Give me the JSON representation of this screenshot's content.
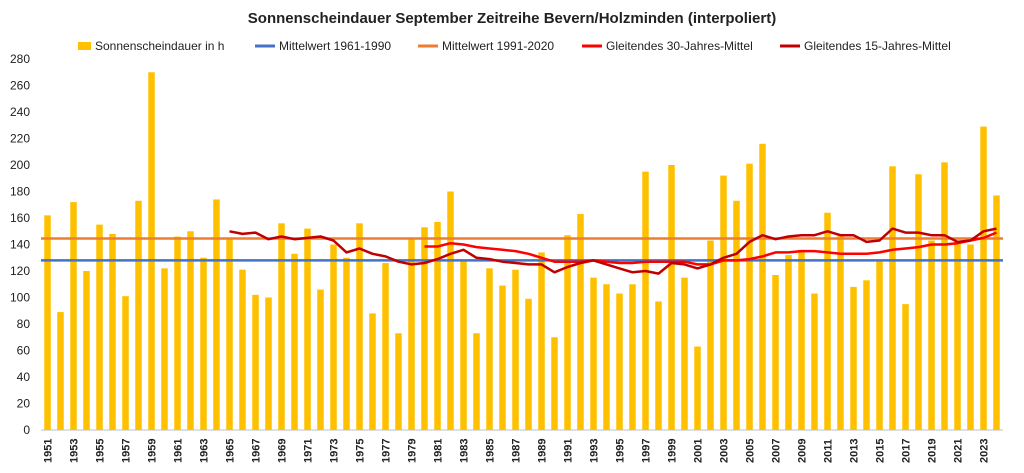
{
  "chart_data": {
    "type": "bar",
    "title": "Sonnenscheindauer September Zeitreihe Bevern/Holzminden (interpoliert)",
    "xlabel": "",
    "ylabel": "",
    "ylim": [
      0,
      280
    ],
    "yticks": [
      0,
      20,
      40,
      60,
      80,
      100,
      120,
      140,
      160,
      180,
      200,
      220,
      240,
      260,
      280
    ],
    "grid": false,
    "legend_position": "top",
    "colors": {
      "bars": "#FFC000",
      "mean_1961_1990": "#4472C4",
      "mean_1991_2020": "#ED7D31",
      "rolling_30": "#FF0000",
      "rolling_15": "#C00000"
    },
    "x": [
      1951,
      1952,
      1953,
      1954,
      1955,
      1956,
      1957,
      1958,
      1959,
      1960,
      1961,
      1962,
      1963,
      1964,
      1965,
      1966,
      1967,
      1968,
      1969,
      1970,
      1971,
      1972,
      1973,
      1974,
      1975,
      1976,
      1977,
      1978,
      1979,
      1980,
      1981,
      1982,
      1983,
      1984,
      1985,
      1986,
      1987,
      1988,
      1989,
      1990,
      1991,
      1992,
      1993,
      1994,
      1995,
      1996,
      1997,
      1998,
      1999,
      2000,
      2001,
      2002,
      2003,
      2004,
      2005,
      2006,
      2007,
      2008,
      2009,
      2010,
      2011,
      2012,
      2013,
      2014,
      2015,
      2016,
      2017,
      2018,
      2019,
      2020,
      2021,
      2022,
      2023,
      2024
    ],
    "x_tick_labels": [
      "1951",
      "1953",
      "1955",
      "1957",
      "1959",
      "1961",
      "1963",
      "1965",
      "1967",
      "1969",
      "1971",
      "1973",
      "1975",
      "1977",
      "1979",
      "1981",
      "1983",
      "1985",
      "1987",
      "1989",
      "1991",
      "1993",
      "1995",
      "1997",
      "1999",
      "2001",
      "2003",
      "2005",
      "2007",
      "2009",
      "2011",
      "2013",
      "2015",
      "2017",
      "2019",
      "2021",
      "2023"
    ],
    "series": [
      {
        "name": "Sonnenscheindauer in h",
        "kind": "bar",
        "values": [
          162,
          89,
          172,
          120,
          155,
          148,
          101,
          173,
          270,
          122,
          146,
          150,
          130,
          174,
          145,
          121,
          102,
          100,
          156,
          133,
          152,
          106,
          140,
          130,
          156,
          88,
          126,
          73,
          145,
          153,
          157,
          180,
          128,
          73,
          122,
          109,
          121,
          99,
          134,
          70,
          147,
          163,
          115,
          110,
          103,
          110,
          195,
          97,
          200,
          115,
          63,
          143,
          192,
          173,
          201,
          216,
          117,
          132,
          136,
          103,
          164,
          148,
          108,
          113,
          128,
          199,
          95,
          193,
          143,
          202,
          143,
          140,
          229,
          177
        ]
      },
      {
        "name": "Mittelwert 1961-1990",
        "kind": "hline",
        "value": 128
      },
      {
        "name": "Mittelwert 1991-2020",
        "kind": "hline",
        "value": 144.5
      },
      {
        "name": "Gleitendes 30-Jahres-Mittel",
        "kind": "line",
        "x": [
          1980,
          1981,
          1982,
          1983,
          1984,
          1985,
          1986,
          1987,
          1988,
          1989,
          1990,
          1991,
          1992,
          1993,
          1994,
          1995,
          1996,
          1997,
          1998,
          1999,
          2000,
          2001,
          2002,
          2003,
          2004,
          2005,
          2006,
          2007,
          2008,
          2009,
          2010,
          2011,
          2012,
          2013,
          2014,
          2015,
          2016,
          2017,
          2018,
          2019,
          2020,
          2021,
          2022,
          2023,
          2024
        ],
        "values": [
          138.5,
          138.5,
          141,
          140,
          138,
          137,
          136,
          135,
          133,
          130,
          127,
          127,
          127,
          128,
          127,
          126,
          126,
          127,
          127,
          127,
          127,
          125,
          125,
          128,
          128,
          129,
          131,
          134,
          134,
          135,
          135,
          134,
          133,
          133,
          133,
          134,
          136,
          137,
          138,
          140,
          140,
          141,
          143,
          145,
          149
        ]
      },
      {
        "name": "Gleitendes 15-Jahres-Mittel",
        "kind": "line",
        "x": [
          1965,
          1966,
          1967,
          1968,
          1969,
          1970,
          1971,
          1972,
          1973,
          1974,
          1975,
          1976,
          1977,
          1978,
          1979,
          1980,
          1981,
          1982,
          1983,
          1984,
          1985,
          1986,
          1987,
          1988,
          1989,
          1990,
          1991,
          1992,
          1993,
          1994,
          1995,
          1996,
          1997,
          1998,
          1999,
          2000,
          2001,
          2002,
          2003,
          2004,
          2005,
          2006,
          2007,
          2008,
          2009,
          2010,
          2011,
          2012,
          2013,
          2014,
          2015,
          2016,
          2017,
          2018,
          2019,
          2020,
          2021,
          2022,
          2023,
          2024
        ],
        "values": [
          150,
          148,
          149,
          144,
          146,
          144,
          145,
          146,
          143,
          134,
          137,
          133,
          131,
          127,
          125,
          126,
          129,
          133,
          136,
          130,
          129,
          127,
          126,
          125,
          125,
          119,
          123,
          126,
          128,
          125,
          122,
          119,
          120,
          118,
          126,
          125,
          122,
          125,
          130,
          133,
          142,
          147,
          144,
          146,
          147,
          147,
          150,
          147,
          147,
          142,
          143,
          152,
          149,
          149,
          147,
          147,
          142,
          143,
          150,
          152
        ]
      }
    ]
  }
}
